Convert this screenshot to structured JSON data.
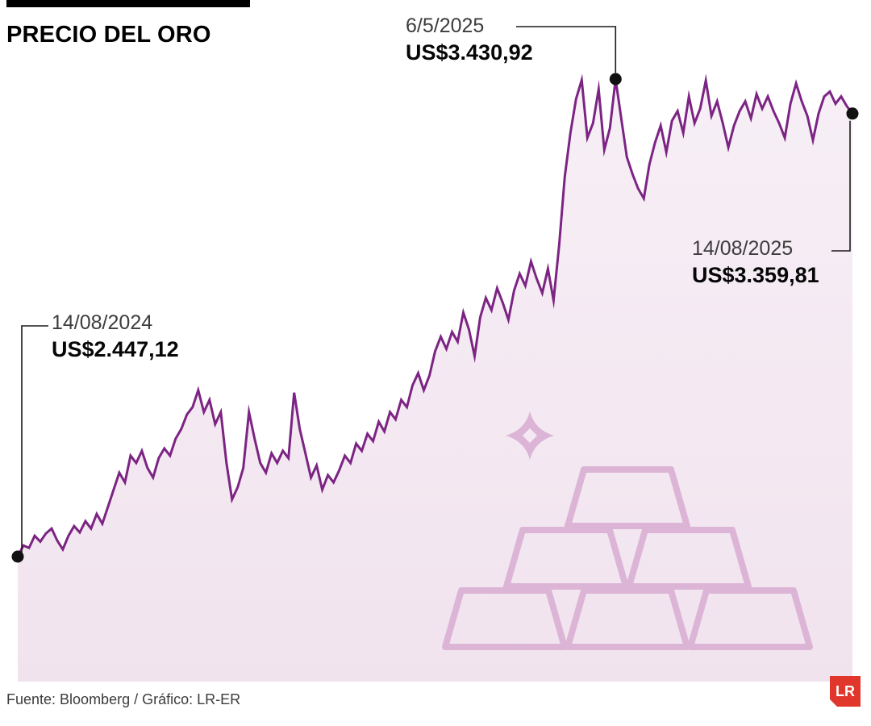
{
  "header": {
    "title": "PRECIO DEL ORO"
  },
  "footer": {
    "source": "Fuente: Bloomberg / Gráfico: LR-ER",
    "logo_text": "LR"
  },
  "colors": {
    "line": "#7c2483",
    "dot": "#111111",
    "leader": "#1b1b1b",
    "fill_top": "#f7eff6",
    "fill_bottom": "#f1e3ee",
    "watermark": "#dcb5d6",
    "logo_red": "#e0362c"
  },
  "chart_data": {
    "type": "area",
    "title": "PRECIO DEL ORO",
    "x_start_label": "14/08/2024",
    "x_end_label": "14/08/2025",
    "y_unit": "US$",
    "ylim": [
      2400,
      3500
    ],
    "grid": false,
    "legend": false,
    "values": [
      2447.12,
      2470,
      2465,
      2490,
      2478,
      2495,
      2505,
      2480,
      2462,
      2490,
      2510,
      2497,
      2520,
      2505,
      2535,
      2515,
      2550,
      2585,
      2620,
      2600,
      2655,
      2640,
      2665,
      2630,
      2610,
      2650,
      2670,
      2655,
      2690,
      2710,
      2740,
      2755,
      2790,
      2745,
      2770,
      2720,
      2745,
      2640,
      2565,
      2590,
      2630,
      2745,
      2690,
      2640,
      2620,
      2660,
      2640,
      2665,
      2650,
      2785,
      2710,
      2660,
      2610,
      2635,
      2585,
      2615,
      2600,
      2625,
      2655,
      2640,
      2680,
      2665,
      2700,
      2685,
      2725,
      2705,
      2745,
      2730,
      2770,
      2755,
      2800,
      2825,
      2790,
      2820,
      2870,
      2900,
      2875,
      2910,
      2890,
      2950,
      2915,
      2860,
      2940,
      2980,
      2955,
      3000,
      2970,
      2935,
      2995,
      3030,
      3005,
      3055,
      3020,
      2990,
      3040,
      2975,
      3090,
      3230,
      3320,
      3390,
      3429,
      3310,
      3340,
      3410,
      3285,
      3330,
      3430.92,
      3350,
      3270,
      3235,
      3205,
      3185,
      3255,
      3300,
      3335,
      3280,
      3345,
      3365,
      3320,
      3395,
      3340,
      3370,
      3428,
      3355,
      3385,
      3340,
      3290,
      3335,
      3365,
      3385,
      3350,
      3400,
      3370,
      3395,
      3365,
      3340,
      3310,
      3380,
      3422,
      3385,
      3355,
      3305,
      3360,
      3395,
      3405,
      3380,
      3395,
      3375,
      3359.81
    ],
    "annotations": [
      {
        "point": "first",
        "date": "14/08/2024",
        "value": 2447.12,
        "label": "US$2.447,12"
      },
      {
        "point": "max",
        "date": "6/5/2025",
        "value": 3430.92,
        "label": "US$3.430,92"
      },
      {
        "point": "last",
        "date": "14/08/2025",
        "value": 3359.81,
        "label": "US$3.359,81"
      }
    ],
    "source": "Fuente: Bloomberg / Gráfico: LR-ER"
  }
}
